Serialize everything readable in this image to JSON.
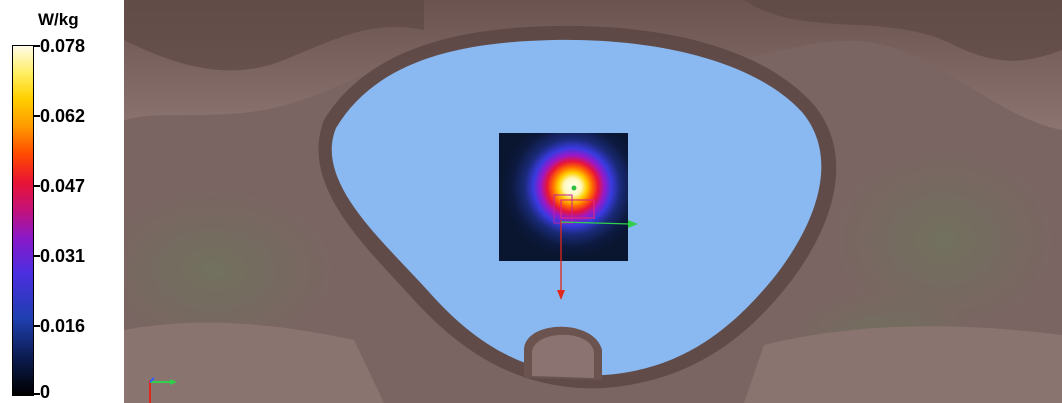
{
  "legend": {
    "unit": "W/kg",
    "ticks": [
      {
        "label": "0.078",
        "value": 0.078
      },
      {
        "label": "0.062",
        "value": 0.062
      },
      {
        "label": "0.047",
        "value": 0.047
      },
      {
        "label": "0.031",
        "value": 0.031
      },
      {
        "label": "0.016",
        "value": 0.016
      },
      {
        "label": "0",
        "value": 0
      }
    ]
  },
  "viewport": {
    "phantom_fill_color": "#8ab8f0",
    "body_tissue_color": "#7f6a66",
    "probe_arrow_color": "#e0281c",
    "axis_colors": {
      "x": "#2fd04a",
      "y": "#3060ff",
      "z": "#e0281c"
    }
  }
}
